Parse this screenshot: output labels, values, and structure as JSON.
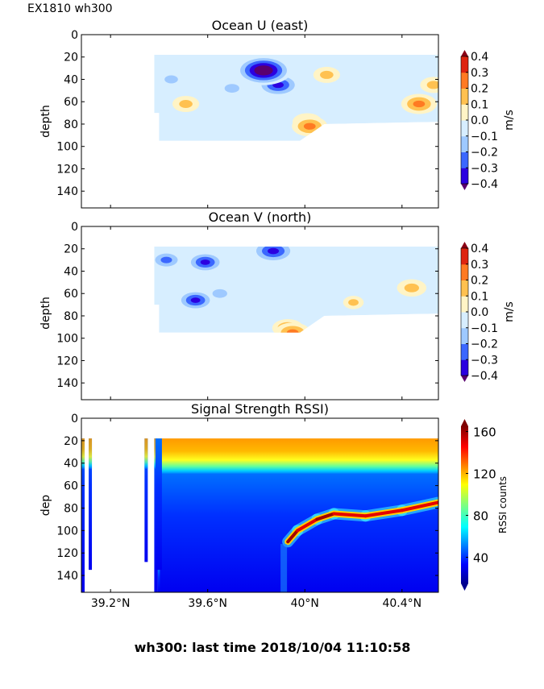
{
  "header": {
    "instrument_label": "EX1810 wh300"
  },
  "footer": {
    "status_text": "wh300: last time 2018/10/04 11:10:58"
  },
  "chart_data": [
    {
      "type": "heatmap",
      "title": "Ocean U (east)",
      "xlabel": "",
      "ylabel": "depth",
      "xlim": [
        39.08,
        40.55
      ],
      "ylim": [
        155,
        0
      ],
      "yticks": [
        0,
        20,
        40,
        60,
        80,
        100,
        120,
        140
      ],
      "xticks": [
        39.2,
        39.6,
        40.0,
        40.4
      ],
      "colorbar": {
        "label": "m/s",
        "ticks": [
          0.4,
          0.3,
          0.2,
          0.1,
          0.0,
          -0.1,
          -0.2,
          -0.3,
          -0.4
        ],
        "tick_labels": [
          "0.4",
          "0.3",
          "0.2",
          "0.1",
          "0.0",
          "−0.1",
          "−0.2",
          "−0.3",
          "−0.4"
        ],
        "range": [
          -0.4,
          0.4
        ],
        "colors": [
          "#5a006e",
          "#2b00e0",
          "#3b67ff",
          "#9ec9ff",
          "#d7eeff",
          "#fff4c6",
          "#ffc150",
          "#ff7a22",
          "#de2410",
          "#8a0015"
        ]
      },
      "data_extent": {
        "x_start": 39.38,
        "x_end": 40.55,
        "depth_top": 18,
        "depth_bottom_start": 95,
        "depth_bottom_end": 78
      },
      "features": [
        {
          "x": 39.83,
          "depth": 32,
          "value": -0.45
        },
        {
          "x": 39.89,
          "depth": 45,
          "value": -0.32
        },
        {
          "x": 39.7,
          "depth": 48,
          "value": -0.15
        },
        {
          "x": 39.51,
          "depth": 62,
          "value": 0.12
        },
        {
          "x": 40.09,
          "depth": 36,
          "value": 0.12
        },
        {
          "x": 40.01,
          "depth": 78,
          "value": 0.15
        },
        {
          "x": 40.02,
          "depth": 82,
          "value": 0.22
        },
        {
          "x": 40.47,
          "depth": 62,
          "value": 0.22
        },
        {
          "x": 40.53,
          "depth": 45,
          "value": 0.12
        },
        {
          "x": 39.45,
          "depth": 40,
          "value": -0.12
        }
      ]
    },
    {
      "type": "heatmap",
      "title": "Ocean V (north)",
      "xlabel": "",
      "ylabel": "depth",
      "xlim": [
        39.08,
        40.55
      ],
      "ylim": [
        155,
        0
      ],
      "yticks": [
        0,
        20,
        40,
        60,
        80,
        100,
        120,
        140
      ],
      "xticks": [
        39.2,
        39.6,
        40.0,
        40.4
      ],
      "colorbar": {
        "label": "m/s",
        "ticks": [
          0.4,
          0.3,
          0.2,
          0.1,
          0.0,
          -0.1,
          -0.2,
          -0.3,
          -0.4
        ],
        "tick_labels": [
          "0.4",
          "0.3",
          "0.2",
          "0.1",
          "0.0",
          "−0.1",
          "−0.2",
          "−0.3",
          "−0.4"
        ],
        "range": [
          -0.4,
          0.4
        ],
        "colors": [
          "#5a006e",
          "#2b00e0",
          "#3b67ff",
          "#9ec9ff",
          "#d7eeff",
          "#fff4c6",
          "#ffc150",
          "#ff7a22",
          "#de2410",
          "#8a0015"
        ]
      },
      "data_extent": {
        "x_start": 39.38,
        "x_end": 40.55,
        "depth_top": 18,
        "depth_bottom_start": 95,
        "depth_bottom_end": 78
      },
      "features": [
        {
          "x": 39.87,
          "depth": 22,
          "value": -0.33
        },
        {
          "x": 39.59,
          "depth": 32,
          "value": -0.25
        },
        {
          "x": 39.55,
          "depth": 66,
          "value": -0.25
        },
        {
          "x": 39.65,
          "depth": 60,
          "value": -0.15
        },
        {
          "x": 40.2,
          "depth": 68,
          "value": 0.05
        },
        {
          "x": 40.44,
          "depth": 55,
          "value": 0.15
        },
        {
          "x": 39.93,
          "depth": 91,
          "value": 0.17
        },
        {
          "x": 39.95,
          "depth": 95,
          "value": 0.22
        },
        {
          "x": 39.43,
          "depth": 30,
          "value": -0.2
        }
      ]
    },
    {
      "type": "heatmap",
      "title": "Signal Strength RSSI)",
      "xlabel": "",
      "ylabel": "dep",
      "xlim": [
        39.08,
        40.55
      ],
      "ylim": [
        155,
        0
      ],
      "yticks": [
        0,
        20,
        40,
        60,
        80,
        100,
        120,
        140
      ],
      "xticks": [
        39.2,
        39.6,
        40.0,
        40.4
      ],
      "xtick_labels": [
        "39.2°N",
        "39.6°N",
        "40°N",
        "40.4°N"
      ],
      "colorbar": {
        "label": "RSSI counts",
        "ticks": [
          160,
          120,
          80,
          40
        ],
        "range": [
          15,
          165
        ],
        "colormap": "jet"
      },
      "surface_layer": {
        "depth_range": [
          18,
          45
        ],
        "rssi_range": [
          115,
          150
        ]
      },
      "deep_layer_rssi": 35,
      "bottom_echo": [
        {
          "x": 39.93,
          "depth": 110,
          "rssi": 130
        },
        {
          "x": 39.97,
          "depth": 100,
          "rssi": 160
        },
        {
          "x": 40.05,
          "depth": 90,
          "rssi": 150
        },
        {
          "x": 40.12,
          "depth": 85,
          "rssi": 160
        },
        {
          "x": 40.25,
          "depth": 87,
          "rssi": 150
        },
        {
          "x": 40.4,
          "depth": 82,
          "rssi": 150
        },
        {
          "x": 40.55,
          "depth": 75,
          "rssi": 150
        }
      ],
      "isolated_profiles": [
        {
          "x": 39.08,
          "depth_range": [
            18,
            155
          ]
        },
        {
          "x": 39.11,
          "depth_range": [
            18,
            135
          ]
        },
        {
          "x": 39.34,
          "depth_range": [
            18,
            128
          ]
        },
        {
          "x": 39.38,
          "depth_range": [
            18,
            155
          ]
        }
      ]
    }
  ]
}
